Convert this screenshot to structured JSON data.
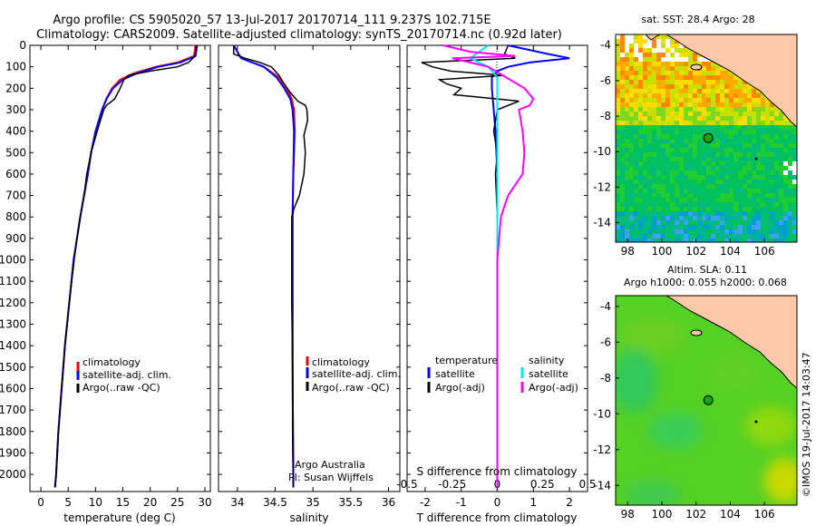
{
  "header": {
    "line1": "Argo profile: CS 5905020_57 13-Jul-2017 20170714_111 9.237S 102.715E",
    "line2": "Climatology: CARS2009. Satellite-adjusted climatology: synTS_20170714.nc (0.92d later)"
  },
  "colors": {
    "climatology": "#ff0000",
    "satellite": "#0000ff",
    "argo": "#000000",
    "sat_s": "#00e5ff",
    "argo_s": "#ff00ff"
  },
  "depth_ticks": [
    0,
    100,
    200,
    300,
    400,
    500,
    600,
    700,
    800,
    900,
    1000,
    1100,
    1200,
    1300,
    1400,
    1500,
    1600,
    1700,
    1800,
    1900,
    2000
  ],
  "chart_data": [
    {
      "type": "line",
      "xlabel": "temperature (deg C)",
      "xlim": [
        -2,
        31
      ],
      "ylim": [
        0,
        2080
      ],
      "x_ticks": [
        0,
        5,
        10,
        15,
        20,
        25,
        30
      ],
      "legend": [
        "climatology",
        "satellite-adj. clim.",
        "Argo(..raw -QC)"
      ],
      "series": [
        {
          "name": "climatology",
          "depth": [
            0,
            50,
            80,
            100,
            130,
            160,
            200,
            250,
            300,
            400,
            500,
            600,
            700,
            800,
            900,
            1000,
            1200,
            1400,
            1600,
            1800,
            2000,
            2060
          ],
          "values": [
            28.3,
            28.0,
            25,
            21,
            17,
            14.5,
            13,
            12,
            11.2,
            10,
            9.2,
            8.6,
            7.9,
            7.2,
            6.6,
            6.0,
            5.2,
            4.4,
            3.8,
            3.2,
            2.8,
            2.6
          ]
        },
        {
          "name": "satellite-adj. clim.",
          "depth": [
            0,
            50,
            80,
            100,
            130,
            160,
            200,
            250,
            300,
            400,
            500,
            600,
            700,
            800,
            900,
            1000,
            1200,
            1400,
            1600,
            1800,
            2000,
            2060
          ],
          "values": [
            28.6,
            28.3,
            25.5,
            21.5,
            17.5,
            15,
            13.2,
            12,
            11.2,
            10,
            9.2,
            8.6,
            7.9,
            7.2,
            6.6,
            6.0,
            5.2,
            4.4,
            3.8,
            3.2,
            2.8,
            2.6
          ]
        },
        {
          "name": "Argo(..raw -QC)",
          "depth": [
            0,
            50,
            80,
            100,
            120,
            140,
            160,
            200,
            250,
            280,
            300,
            400,
            500,
            600,
            700,
            800,
            900,
            1000,
            1200,
            1400,
            1600,
            1800,
            2000,
            2060
          ],
          "values": [
            28.4,
            28.2,
            27,
            25,
            20,
            16,
            15.2,
            14.5,
            13.5,
            12,
            11.5,
            10.3,
            9.2,
            8.4,
            7.9,
            7.2,
            6.6,
            6.1,
            5.2,
            4.4,
            3.8,
            3.2,
            2.8,
            2.6
          ]
        }
      ]
    },
    {
      "type": "line",
      "xlabel": "salinity",
      "xlim": [
        33.75,
        36.15
      ],
      "ylim": [
        0,
        2080
      ],
      "x_ticks": [
        34,
        34.5,
        35,
        35.5,
        36
      ],
      "legend": [
        "climatology",
        "satellite-adj. clim.",
        "Argo(..raw -QC)"
      ],
      "series": [
        {
          "name": "climatology",
          "depth": [
            0,
            60,
            100,
            150,
            200,
            250,
            300,
            400,
            600,
            800,
            1000,
            1500,
            2000,
            2060
          ],
          "values": [
            33.95,
            34.05,
            34.35,
            34.55,
            34.65,
            34.72,
            34.75,
            34.76,
            34.74,
            34.73,
            34.73,
            34.73,
            34.74,
            34.74
          ]
        },
        {
          "name": "satellite-adj. clim.",
          "depth": [
            0,
            60,
            100,
            150,
            200,
            250,
            300,
            400,
            600,
            800,
            1000,
            1500,
            2000,
            2060
          ],
          "values": [
            33.95,
            34.05,
            34.35,
            34.52,
            34.62,
            34.7,
            34.73,
            34.75,
            34.74,
            34.73,
            34.73,
            34.73,
            34.74,
            34.74
          ]
        },
        {
          "name": "Argo(..raw -QC)",
          "depth": [
            0,
            40,
            60,
            80,
            100,
            140,
            180,
            220,
            260,
            280,
            300,
            350,
            420,
            500,
            600,
            700,
            760,
            800,
            1000,
            1200,
            1500,
            1800,
            2000,
            2060
          ],
          "values": [
            33.95,
            33.95,
            34.1,
            34.3,
            34.45,
            34.55,
            34.62,
            34.7,
            34.8,
            34.9,
            34.92,
            34.93,
            34.88,
            34.9,
            34.88,
            34.82,
            34.75,
            34.72,
            34.72,
            34.72,
            34.73,
            34.73,
            34.74,
            34.74
          ]
        }
      ]
    },
    {
      "type": "line",
      "xlabel": "T difference from climatology",
      "top_label": "S difference from climatology",
      "xlim": [
        -2.5,
        2.5
      ],
      "ylim": [
        0,
        2080
      ],
      "x_ticks": [
        -2,
        -1,
        0,
        1,
        2
      ],
      "top_ticks": [
        "-0.5",
        "-0.25",
        "0",
        "0.25",
        "0.5"
      ],
      "legend_t_title": "temperature",
      "legend_s_title": "salinity",
      "legend": [
        "satellite",
        "Argo(-adj)",
        "satellite",
        "Argo(-adj)"
      ],
      "series": [
        {
          "name": "temperature satellite",
          "depth": [
            0,
            40,
            60,
            80,
            100,
            120,
            150,
            200,
            300,
            400,
            600,
            800,
            1000,
            1500,
            2000,
            2060
          ],
          "values": [
            0.3,
            1.4,
            2.0,
            0.9,
            0.3,
            0.0,
            -0.15,
            -0.15,
            -0.1,
            -0.05,
            0,
            0,
            0,
            0,
            0,
            0
          ]
        },
        {
          "name": "temperature Argo(-adj)",
          "depth": [
            0,
            40,
            60,
            80,
            100,
            120,
            140,
            160,
            180,
            200,
            230,
            260,
            300,
            400,
            500,
            600,
            800,
            1000,
            1500,
            2000,
            2060
          ],
          "values": [
            0.3,
            0.2,
            0.5,
            -2.1,
            -1.8,
            -1.3,
            0.2,
            -1.6,
            -1.4,
            -1.0,
            -1.2,
            0.6,
            0.0,
            -0.1,
            0.0,
            -0.05,
            0.0,
            0.0,
            0.0,
            0.0,
            0.0
          ]
        },
        {
          "name": "salinity satellite",
          "depth": [
            0,
            30,
            60,
            100,
            150,
            200,
            300,
            400,
            600,
            800,
            1000,
            1500,
            2000,
            2060
          ],
          "values": [
            -0.05,
            -0.1,
            -0.15,
            -0.05,
            0.0,
            0.0,
            0.0,
            0.0,
            0.0,
            0.0,
            0.0,
            0.0,
            0.0,
            0.0
          ]
        },
        {
          "name": "salinity Argo(-adj)",
          "depth": [
            0,
            30,
            50,
            60,
            80,
            100,
            150,
            200,
            250,
            280,
            300,
            400,
            500,
            600,
            700,
            800,
            900,
            1000,
            1200,
            1500,
            1800,
            2000,
            2060
          ],
          "values": [
            -0.3,
            -0.15,
            0.1,
            -0.25,
            -0.15,
            -0.05,
            0.05,
            0.15,
            0.2,
            0.18,
            0.12,
            0.14,
            0.15,
            0.14,
            0.06,
            0.02,
            0.01,
            0.0,
            0.0,
            0.0,
            0.0,
            0.0,
            0.0
          ]
        }
      ]
    },
    {
      "type": "heatmap",
      "title": "sat. SST: 28.4 Argo: 28",
      "xlim": [
        97.3,
        107.9
      ],
      "ylim": [
        -15.1,
        -3.4
      ],
      "x_ticks": [
        "98",
        "100",
        "102",
        "104",
        "106"
      ],
      "y_ticks": [
        "-4",
        "-6",
        "-8",
        "-10",
        "-12",
        "-14"
      ],
      "argo_position": {
        "lon": 102.715,
        "lat": -9.237
      }
    },
    {
      "type": "heatmap",
      "title": "Altim. SLA: 0.11",
      "subtitle": "Argo h1000: 0.055 h2000: 0.068",
      "xlim": [
        97.3,
        107.9
      ],
      "ylim": [
        -15.1,
        -3.4
      ],
      "x_ticks": [
        "98",
        "100",
        "102",
        "104",
        "106"
      ],
      "y_ticks": [
        "-4",
        "-6",
        "-8",
        "-10",
        "-12",
        "-14"
      ],
      "argo_position": {
        "lon": 102.715,
        "lat": -9.237
      }
    }
  ],
  "footer": {
    "credit_lines": [
      "Argo Australia",
      "PI: Susan Wijffels"
    ],
    "stamp": "©IMOS 19-Jul-2017 14:03:47"
  }
}
